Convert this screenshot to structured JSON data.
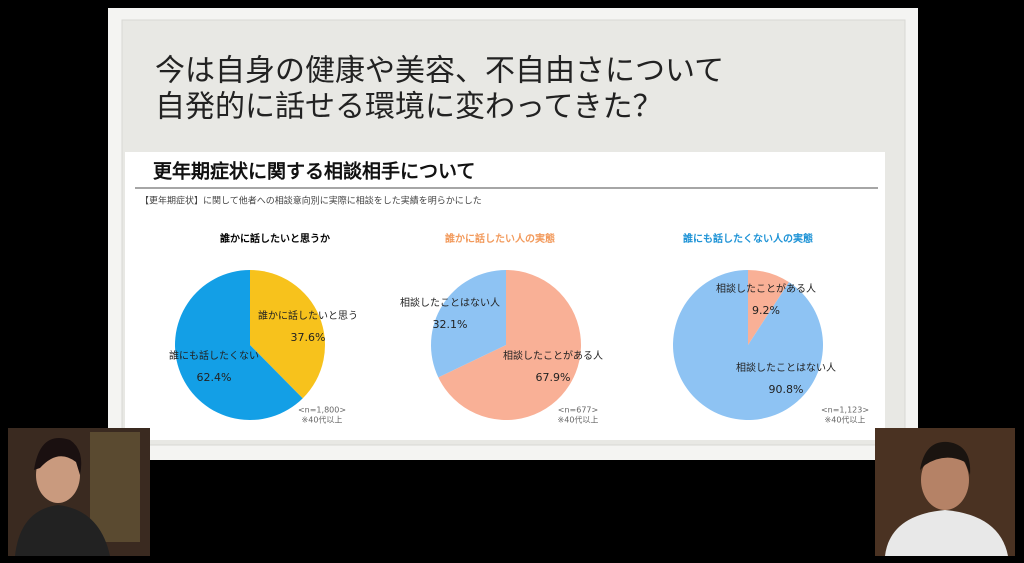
{
  "slide": {
    "title_lines": [
      "今は自身の健康や美容、不自由さについて",
      "自発的に話せる環境に変わってきた？"
    ],
    "heading": "更年期症状に関する相談相手について",
    "description": "【更年期症状】に関して他者への相談意向別に実際に相談をした実績を明らかにした"
  },
  "chart_data": [
    {
      "type": "pie",
      "title": "誰かに話したいと思うか",
      "title_color": "#000000",
      "categories": [
        "誰かに話したいと思う",
        "誰にも話したくない"
      ],
      "values": [
        37.6,
        62.4
      ],
      "value_labels": [
        "37.6%",
        "62.4%"
      ],
      "colors": [
        "#f7c21c",
        "#139fe6"
      ],
      "notes": [
        "<n=1,800>",
        "※40代以上"
      ]
    },
    {
      "type": "pie",
      "title": "誰かに話したい人の実態",
      "title_color": "#f29a5c",
      "categories": [
        "相談したことがある人",
        "相談したことはない人"
      ],
      "values": [
        67.9,
        32.1
      ],
      "value_labels": [
        "67.9%",
        "32.1%"
      ],
      "colors": [
        "#f9b096",
        "#8ec3f3"
      ],
      "notes": [
        "<n=677>",
        "※40代以上"
      ]
    },
    {
      "type": "pie",
      "title": "誰にも話したくない人の実態",
      "title_color": "#1e93d6",
      "categories": [
        "相談したことがある人",
        "相談したことはない人"
      ],
      "values": [
        9.2,
        90.8
      ],
      "value_labels": [
        "9.2%",
        "90.8%"
      ],
      "colors": [
        "#f9b096",
        "#8ec3f3"
      ],
      "notes": [
        "<n=1,123>",
        "※40代以上"
      ]
    }
  ]
}
